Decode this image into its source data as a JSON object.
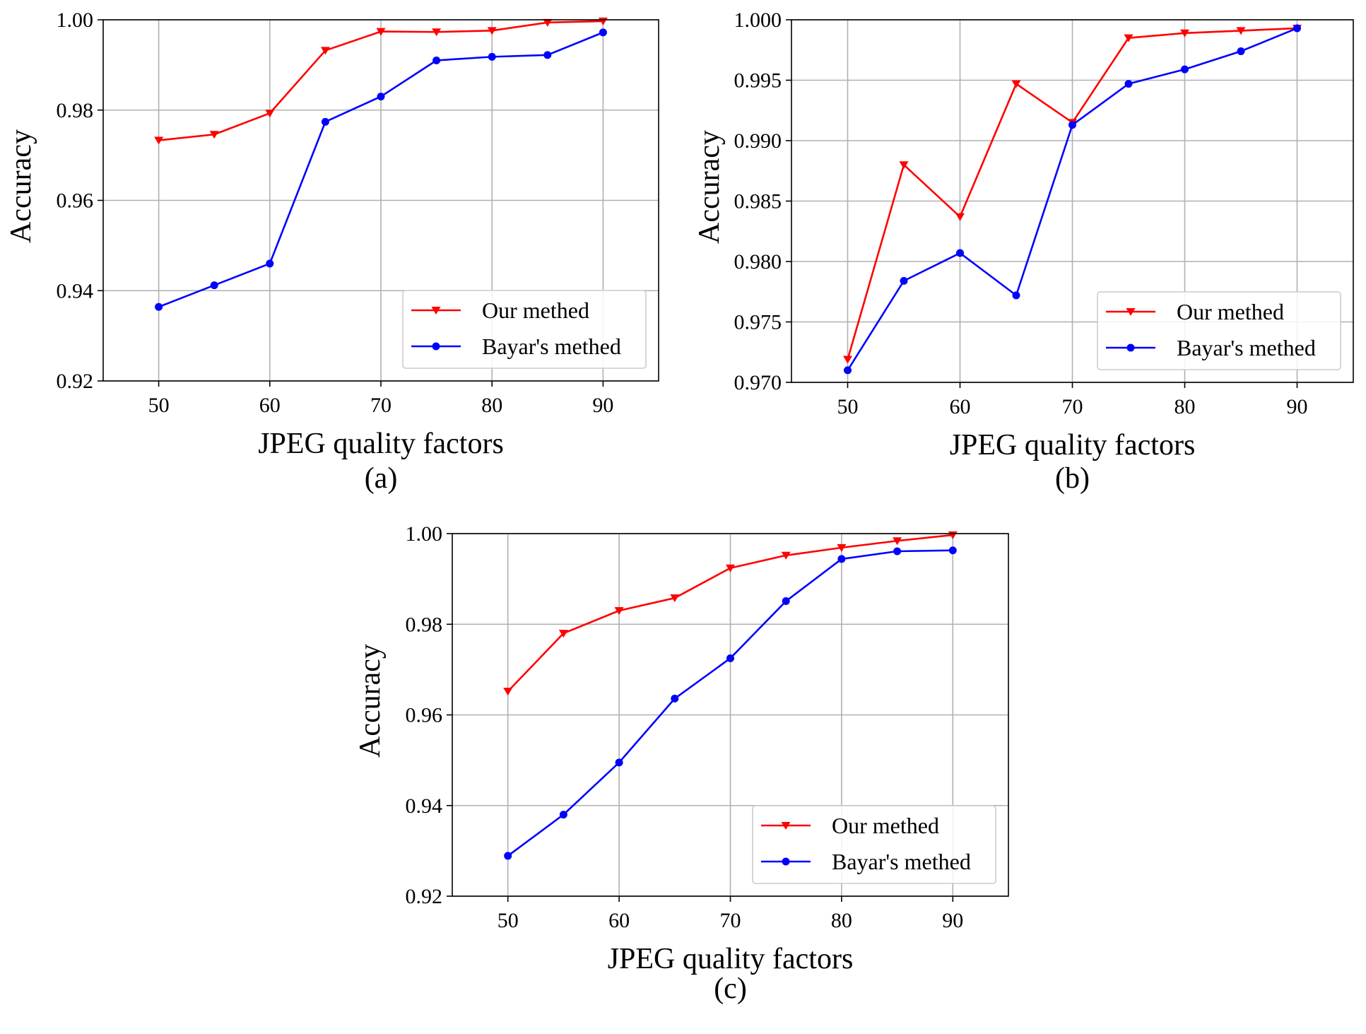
{
  "chart_data": [
    {
      "type": "line",
      "caption": "(a)",
      "xlabel": "JPEG quality factors",
      "ylabel": "Accuracy",
      "x": [
        50,
        55,
        60,
        65,
        70,
        75,
        80,
        85,
        90
      ],
      "xlim": [
        45,
        95
      ],
      "ylim": [
        0.92,
        1.0
      ],
      "xticks": [
        50,
        60,
        70,
        80,
        90
      ],
      "xtick_labels": [
        "50",
        "60",
        "70",
        "80",
        "90"
      ],
      "yticks": [
        0.92,
        0.94,
        0.96,
        0.98,
        1.0
      ],
      "ytick_labels": [
        "0.92",
        "0.94",
        "0.96",
        "0.98",
        "1.00"
      ],
      "grid": true,
      "legend_position": "bottom-right",
      "series": [
        {
          "name": "Our methed",
          "color": "#ff0000",
          "marker": "triangle-down",
          "values": [
            0.9733,
            0.9746,
            0.9793,
            0.9932,
            0.9974,
            0.9973,
            0.9976,
            0.9994,
            0.9997
          ]
        },
        {
          "name": "Bayar's methed",
          "color": "#0000ff",
          "marker": "circle",
          "values": [
            0.9364,
            0.9412,
            0.946,
            0.9774,
            0.983,
            0.991,
            0.9918,
            0.9922,
            0.9972
          ]
        }
      ]
    },
    {
      "type": "line",
      "caption": "(b)",
      "xlabel": "JPEG quality factors",
      "ylabel": "Accuracy",
      "x": [
        50,
        55,
        60,
        65,
        70,
        75,
        80,
        85,
        90
      ],
      "xlim": [
        45,
        95
      ],
      "ylim": [
        0.97,
        1.0
      ],
      "xticks": [
        50,
        60,
        70,
        80,
        90
      ],
      "xtick_labels": [
        "50",
        "60",
        "70",
        "80",
        "90"
      ],
      "yticks": [
        0.97,
        0.975,
        0.98,
        0.985,
        0.99,
        0.995,
        1.0
      ],
      "ytick_labels": [
        "0.970",
        "0.975",
        "0.980",
        "0.985",
        "0.990",
        "0.995",
        "1.000"
      ],
      "grid": true,
      "legend_position": "bottom-right",
      "series": [
        {
          "name": "Our methed",
          "color": "#ff0000",
          "marker": "triangle-down",
          "values": [
            0.9719,
            0.988,
            0.9837,
            0.9947,
            0.9915,
            0.9985,
            0.9989,
            0.9991,
            0.9993
          ]
        },
        {
          "name": "Bayar's methed",
          "color": "#0000ff",
          "marker": "circle",
          "values": [
            0.971,
            0.9784,
            0.9807,
            0.9772,
            0.9913,
            0.9947,
            0.9959,
            0.9974,
            0.9993
          ]
        }
      ]
    },
    {
      "type": "line",
      "caption": "(c)",
      "xlabel": "JPEG quality factors",
      "ylabel": "Accuracy",
      "x": [
        50,
        55,
        60,
        65,
        70,
        75,
        80,
        85,
        90
      ],
      "xlim": [
        45,
        95
      ],
      "ylim": [
        0.92,
        1.0
      ],
      "xticks": [
        50,
        60,
        70,
        80,
        90
      ],
      "xtick_labels": [
        "50",
        "60",
        "70",
        "80",
        "90"
      ],
      "yticks": [
        0.92,
        0.94,
        0.96,
        0.98,
        1.0
      ],
      "ytick_labels": [
        "0.92",
        "0.94",
        "0.96",
        "0.98",
        "1.00"
      ],
      "grid": true,
      "legend_position": "bottom-right",
      "series": [
        {
          "name": "Our methed",
          "color": "#ff0000",
          "marker": "triangle-down",
          "values": [
            0.9652,
            0.978,
            0.983,
            0.9858,
            0.9924,
            0.9952,
            0.9969,
            0.9984,
            0.9997
          ]
        },
        {
          "name": "Bayar's methed",
          "color": "#0000ff",
          "marker": "circle",
          "values": [
            0.9289,
            0.938,
            0.9495,
            0.9636,
            0.9725,
            0.9851,
            0.9944,
            0.9961,
            0.9963
          ]
        }
      ]
    }
  ]
}
